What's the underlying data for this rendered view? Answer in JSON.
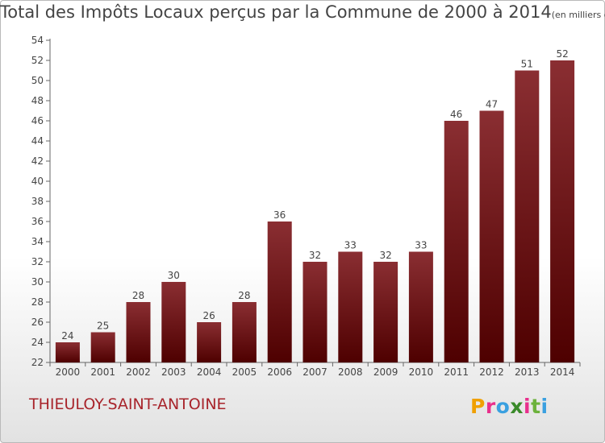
{
  "title": "Total des Impôts Locaux perçus par la Commune de 2000 à 2014",
  "unit_note": "(en milliers d'€)",
  "commune": "THIEULOY-SAINT-ANTOINE",
  "brand": {
    "letters": [
      "P",
      "r",
      "o",
      "x",
      "i",
      "t",
      "i"
    ],
    "colors": [
      "#f0a000",
      "#e8308c",
      "#3aa0e0",
      "#3a8a2a",
      "#e8308c",
      "#6cb23c",
      "#3aa0e0"
    ]
  },
  "colors": {
    "bar_top": "#8a2e32",
    "bar_bottom": "#4e0000",
    "axis": "#666666",
    "grid": "#cfcfcf",
    "commune": "#a8242b"
  },
  "chart_data": {
    "type": "bar",
    "title": "Total des Impôts Locaux perçus par la Commune de 2000 à 2014",
    "xlabel": "",
    "ylabel": "en milliers d'€",
    "categories": [
      "2000",
      "2001",
      "2002",
      "2003",
      "2004",
      "2005",
      "2006",
      "2007",
      "2008",
      "2009",
      "2010",
      "2011",
      "2012",
      "2013",
      "2014"
    ],
    "values": [
      24,
      25,
      28,
      30,
      26,
      28,
      36,
      32,
      33,
      32,
      33,
      46,
      47,
      51,
      52
    ],
    "ylim": [
      22,
      54
    ],
    "yticks": [
      22,
      24,
      26,
      28,
      30,
      32,
      34,
      36,
      38,
      40,
      42,
      44,
      46,
      48,
      50,
      52,
      54
    ],
    "grid": false,
    "legend": "none"
  }
}
